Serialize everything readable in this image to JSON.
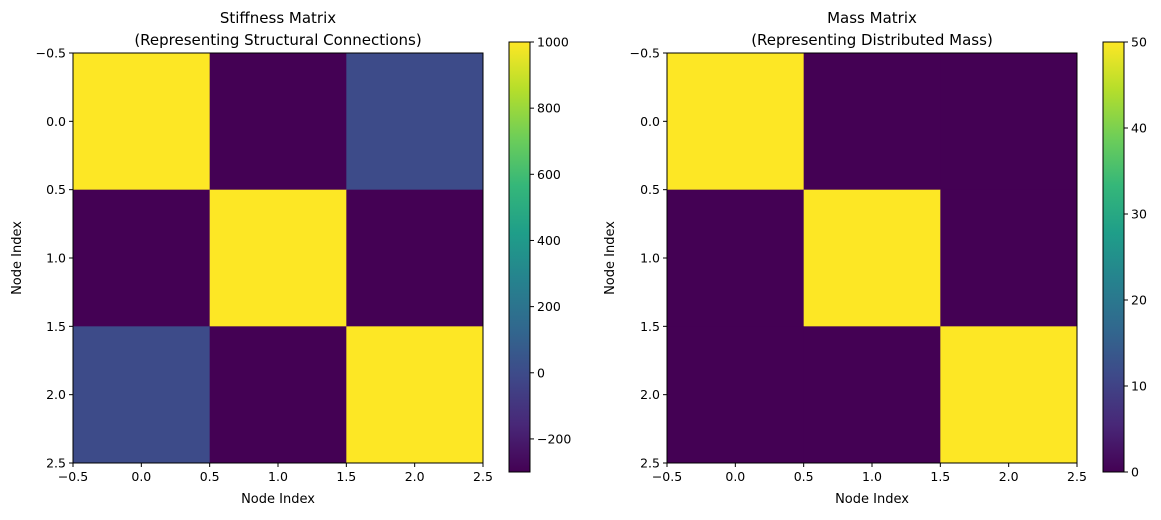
{
  "colors": {
    "viridis_stops": [
      "#440154",
      "#482878",
      "#3e4989",
      "#31688e",
      "#26828e",
      "#1f9e89",
      "#35b779",
      "#6ece58",
      "#b5de2b",
      "#fde725"
    ]
  },
  "chart_data": [
    {
      "type": "heatmap",
      "title_line1": "Stiffness Matrix",
      "title_line2": "(Representing Structural Connections)",
      "xlabel": "Node Index",
      "ylabel": "Node Index",
      "x_ticks": [
        "−0.5",
        "0.0",
        "0.5",
        "1.0",
        "1.5",
        "2.0",
        "2.5"
      ],
      "y_ticks": [
        "−0.5",
        "0.0",
        "0.5",
        "1.0",
        "1.5",
        "2.0",
        "2.5"
      ],
      "xlim": [
        -0.5,
        2.5
      ],
      "ylim": [
        2.5,
        -0.5
      ],
      "matrix": [
        [
          1000,
          -300,
          0
        ],
        [
          -300,
          1000,
          -300
        ],
        [
          0,
          -300,
          1000
        ]
      ],
      "colorbar": {
        "vmin": -300,
        "vmax": 1000,
        "ticks": [
          -200,
          0,
          200,
          400,
          600,
          800,
          1000
        ],
        "tick_labels": [
          "−200",
          "0",
          "200",
          "400",
          "600",
          "800",
          "1000"
        ]
      }
    },
    {
      "type": "heatmap",
      "title_line1": "Mass Matrix",
      "title_line2": "(Representing Distributed Mass)",
      "xlabel": "Node Index",
      "ylabel": "Node Index",
      "x_ticks": [
        "−0.5",
        "0.0",
        "0.5",
        "1.0",
        "1.5",
        "2.0",
        "2.5"
      ],
      "y_ticks": [
        "−0.5",
        "0.0",
        "0.5",
        "1.0",
        "1.5",
        "2.0",
        "2.5"
      ],
      "xlim": [
        -0.5,
        2.5
      ],
      "ylim": [
        2.5,
        -0.5
      ],
      "matrix": [
        [
          50,
          0,
          0
        ],
        [
          0,
          50,
          0
        ],
        [
          0,
          0,
          50
        ]
      ],
      "colorbar": {
        "vmin": 0,
        "vmax": 50,
        "ticks": [
          0,
          10,
          20,
          30,
          40,
          50
        ],
        "tick_labels": [
          "0",
          "10",
          "20",
          "30",
          "40",
          "50"
        ]
      }
    }
  ]
}
